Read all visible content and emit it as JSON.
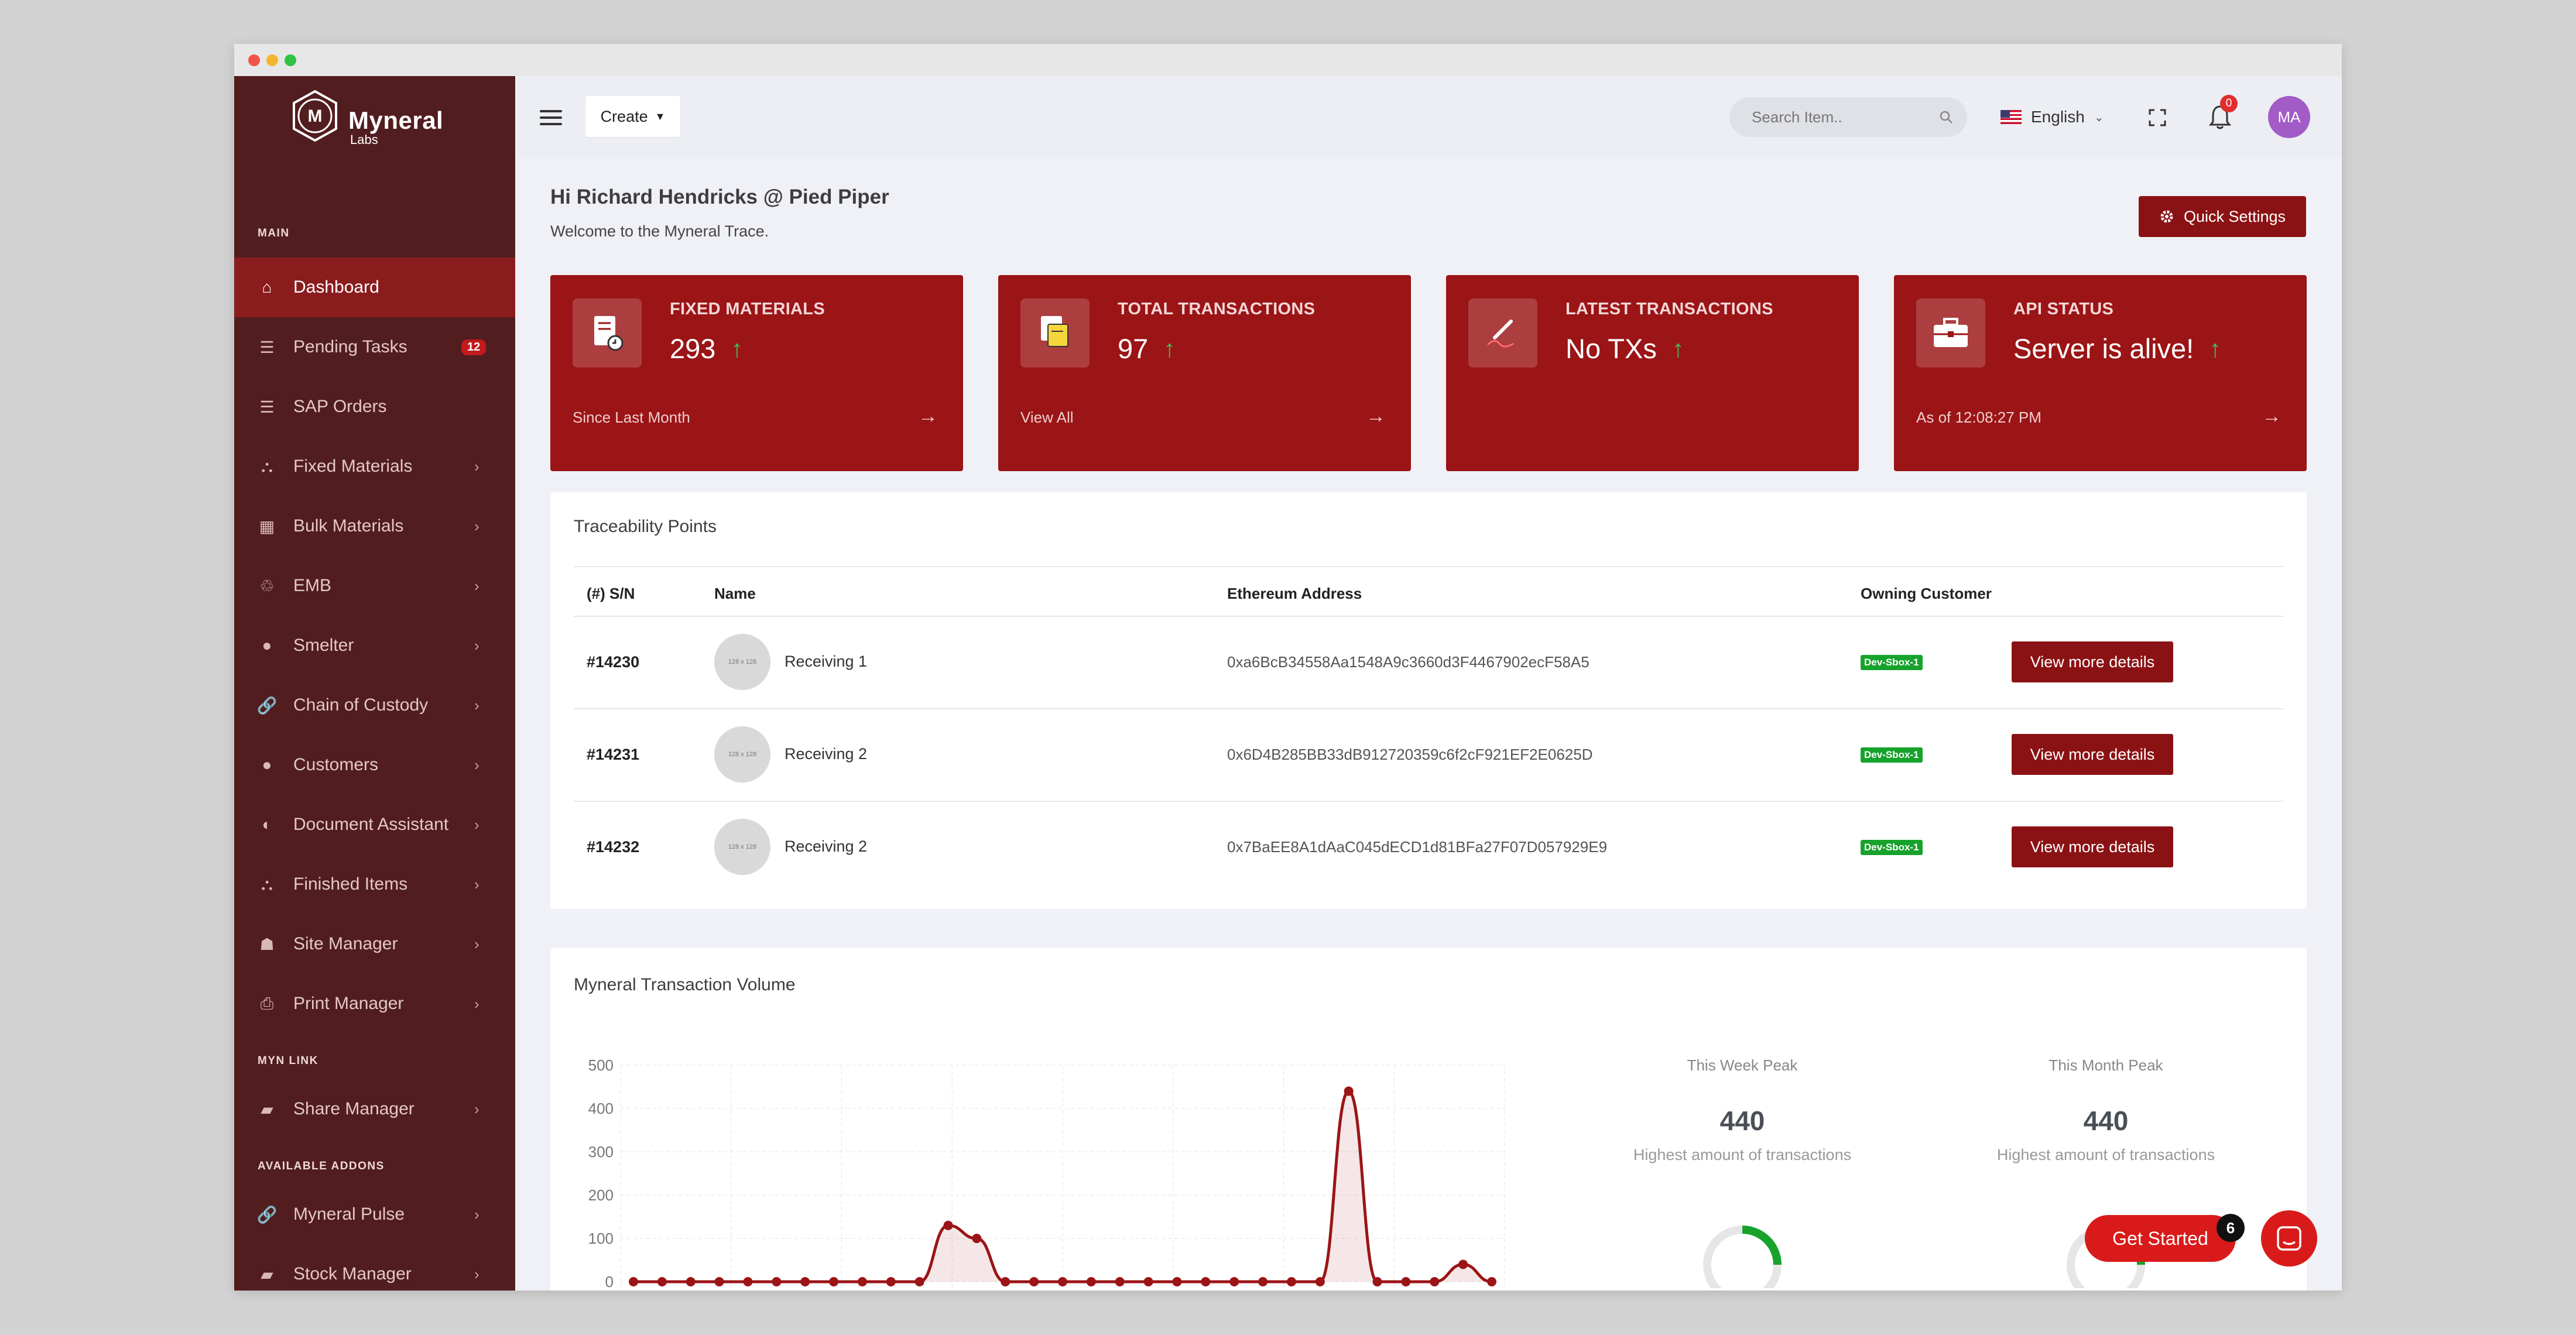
{
  "app": {
    "brand_name": "Myneral",
    "brand_sub": "Labs",
    "logo_letter": "M"
  },
  "sidebar": {
    "sections": {
      "main": "MAIN",
      "myn_link": "MYN LINK",
      "addons": "AVAILABLE ADDONS"
    },
    "items": [
      {
        "label": "Dashboard",
        "icon": "home-icon",
        "active": true
      },
      {
        "label": "Pending Tasks",
        "icon": "list-icon",
        "badge": "12"
      },
      {
        "label": "SAP Orders",
        "icon": "list-icon"
      },
      {
        "label": "Fixed Materials",
        "icon": "sitemap-icon"
      },
      {
        "label": "Bulk Materials",
        "icon": "grid-icon"
      },
      {
        "label": "EMB",
        "icon": "recycle-icon"
      },
      {
        "label": "Smelter",
        "icon": "fire-icon"
      },
      {
        "label": "Chain of Custody",
        "icon": "link-icon"
      },
      {
        "label": "Customers",
        "icon": "user-icon"
      },
      {
        "label": "Document Assistant",
        "icon": "brain-icon"
      },
      {
        "label": "Finished Items",
        "icon": "sitemap-icon"
      },
      {
        "label": "Site Manager",
        "icon": "users-icon"
      },
      {
        "label": "Print Manager",
        "icon": "print-icon"
      },
      {
        "label": "Share Manager",
        "icon": "folder-icon"
      },
      {
        "label": "Myneral Pulse",
        "icon": "link-icon"
      },
      {
        "label": "Stock Manager",
        "icon": "folder-icon"
      }
    ]
  },
  "topbar": {
    "create_label": "Create",
    "search_placeholder": "Search Item..",
    "language": "English",
    "notification_count": "0",
    "avatar_initials": "MA"
  },
  "header": {
    "greeting": "Hi Richard Hendricks @ Pied Piper",
    "welcome": "Welcome to the Myneral Trace.",
    "quick_settings": "Quick Settings"
  },
  "cards": [
    {
      "title": "FIXED MATERIALS",
      "value": "293",
      "footer": "Since Last Month",
      "icon": "document-icon"
    },
    {
      "title": "TOTAL TRANSACTIONS",
      "value": "97",
      "footer": "View All",
      "icon": "notes-icon"
    },
    {
      "title": "LATEST TRANSACTIONS",
      "value": "No TXs",
      "footer": "",
      "icon": "signature-icon"
    },
    {
      "title": "API STATUS",
      "value": "Server is alive!",
      "footer": "As of 12:08:27 PM",
      "icon": "briefcase-icon"
    }
  ],
  "trace": {
    "title": "Traceability Points",
    "columns": [
      "(#) S/N",
      "Name",
      "Ethereum Address",
      "Owning Customer"
    ],
    "image_placeholder": "128 x 128",
    "button_label": "View more details",
    "rows": [
      {
        "sn": "#14230",
        "name": "Receiving 1",
        "address": "0xa6BcB34558Aa1548A9c3660d3F4467902ecF58A5",
        "customer": "Dev-Sbox-1"
      },
      {
        "sn": "#14231",
        "name": "Receiving 2",
        "address": "0x6D4B285BB33dB912720359c6f2cF921EF2E0625D",
        "customer": "Dev-Sbox-1"
      },
      {
        "sn": "#14232",
        "name": "Receiving 2",
        "address": "0x7BaEE8A1dAaC045dECD1d81BFa27F07D057929E9",
        "customer": "Dev-Sbox-1"
      }
    ]
  },
  "volume": {
    "title": "Myneral Transaction Volume",
    "peaks": [
      {
        "label": "This Week Peak",
        "value": "440",
        "sub": "Highest amount of transactions"
      },
      {
        "label": "This Month Peak",
        "value": "440",
        "sub": "Highest amount of transactions"
      }
    ]
  },
  "chart_data": {
    "type": "area",
    "title": "Myneral Transaction Volume",
    "ylim": [
      0,
      500
    ],
    "yticks": [
      "500",
      "400",
      "300",
      "200",
      "100",
      "0"
    ],
    "x": [
      0,
      1,
      2,
      3,
      4,
      5,
      6,
      7,
      8,
      9,
      10,
      11,
      12,
      13,
      14,
      15,
      16,
      17,
      18,
      19,
      20,
      21,
      22,
      23,
      24,
      25,
      26,
      27,
      28,
      29,
      30
    ],
    "values": [
      0,
      0,
      0,
      0,
      0,
      0,
      0,
      0,
      0,
      0,
      0,
      130,
      100,
      0,
      0,
      0,
      0,
      0,
      0,
      0,
      0,
      0,
      0,
      0,
      0,
      440,
      0,
      0,
      0,
      40,
      0
    ],
    "grid": true,
    "color": "#9b1416"
  },
  "widgets": {
    "get_started": "Get Started",
    "get_started_count": "6"
  },
  "colors": {
    "sidebar_bg": "#521d1f",
    "sidebar_active": "#8a1c1e",
    "brand_red": "#9b1416",
    "tag_green": "#17a22c"
  }
}
